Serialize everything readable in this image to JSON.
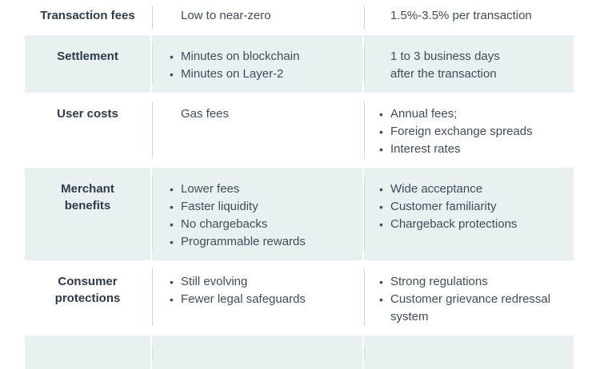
{
  "colors": {
    "page_background": "#ffffff",
    "row_shaded_bg": "#e8f0f2",
    "divider": "#c9d8dc",
    "label_text": "#2f3b46",
    "body_text": "#414d56"
  },
  "table": {
    "rows": [
      {
        "label": [
          "Transaction fees"
        ],
        "shaded": false,
        "first": true,
        "partial": false,
        "crypto": {
          "type": "text",
          "lines": [
            "Low to near-zero"
          ]
        },
        "card": {
          "type": "text",
          "lines": [
            "1.5%-3.5% per transaction"
          ]
        }
      },
      {
        "label": [
          "Settlement"
        ],
        "shaded": true,
        "first": false,
        "partial": false,
        "crypto": {
          "type": "bullets",
          "items": [
            "Minutes on blockchain",
            "Minutes on Layer-2"
          ]
        },
        "card": {
          "type": "text",
          "lines": [
            "1 to 3 business days",
            "after the transaction"
          ]
        }
      },
      {
        "label": [
          "User costs"
        ],
        "shaded": false,
        "first": false,
        "partial": false,
        "crypto": {
          "type": "text",
          "lines": [
            "Gas fees"
          ]
        },
        "card": {
          "type": "bullets",
          "items": [
            "Annual fees;",
            "Foreign exchange spreads",
            "Interest rates"
          ]
        }
      },
      {
        "label": [
          "Merchant",
          "benefits"
        ],
        "shaded": true,
        "first": false,
        "partial": false,
        "crypto": {
          "type": "bullets",
          "items": [
            "Lower fees",
            "Faster liquidity",
            "No chargebacks",
            "Programmable rewards"
          ]
        },
        "card": {
          "type": "bullets",
          "items": [
            "Wide acceptance",
            "Customer familiarity",
            "Chargeback protections"
          ]
        }
      },
      {
        "label": [
          "Consumer",
          "protections"
        ],
        "shaded": false,
        "first": false,
        "partial": false,
        "crypto": {
          "type": "bullets",
          "items": [
            "Still evolving",
            "Fewer legal safeguards"
          ]
        },
        "card": {
          "type": "bullets",
          "items": [
            "Strong regulations",
            "Customer grievance redressal system"
          ]
        }
      },
      {
        "label": [],
        "shaded": true,
        "first": false,
        "partial": true,
        "crypto": {
          "type": "text",
          "lines": []
        },
        "card": {
          "type": "text",
          "lines": []
        }
      }
    ]
  }
}
